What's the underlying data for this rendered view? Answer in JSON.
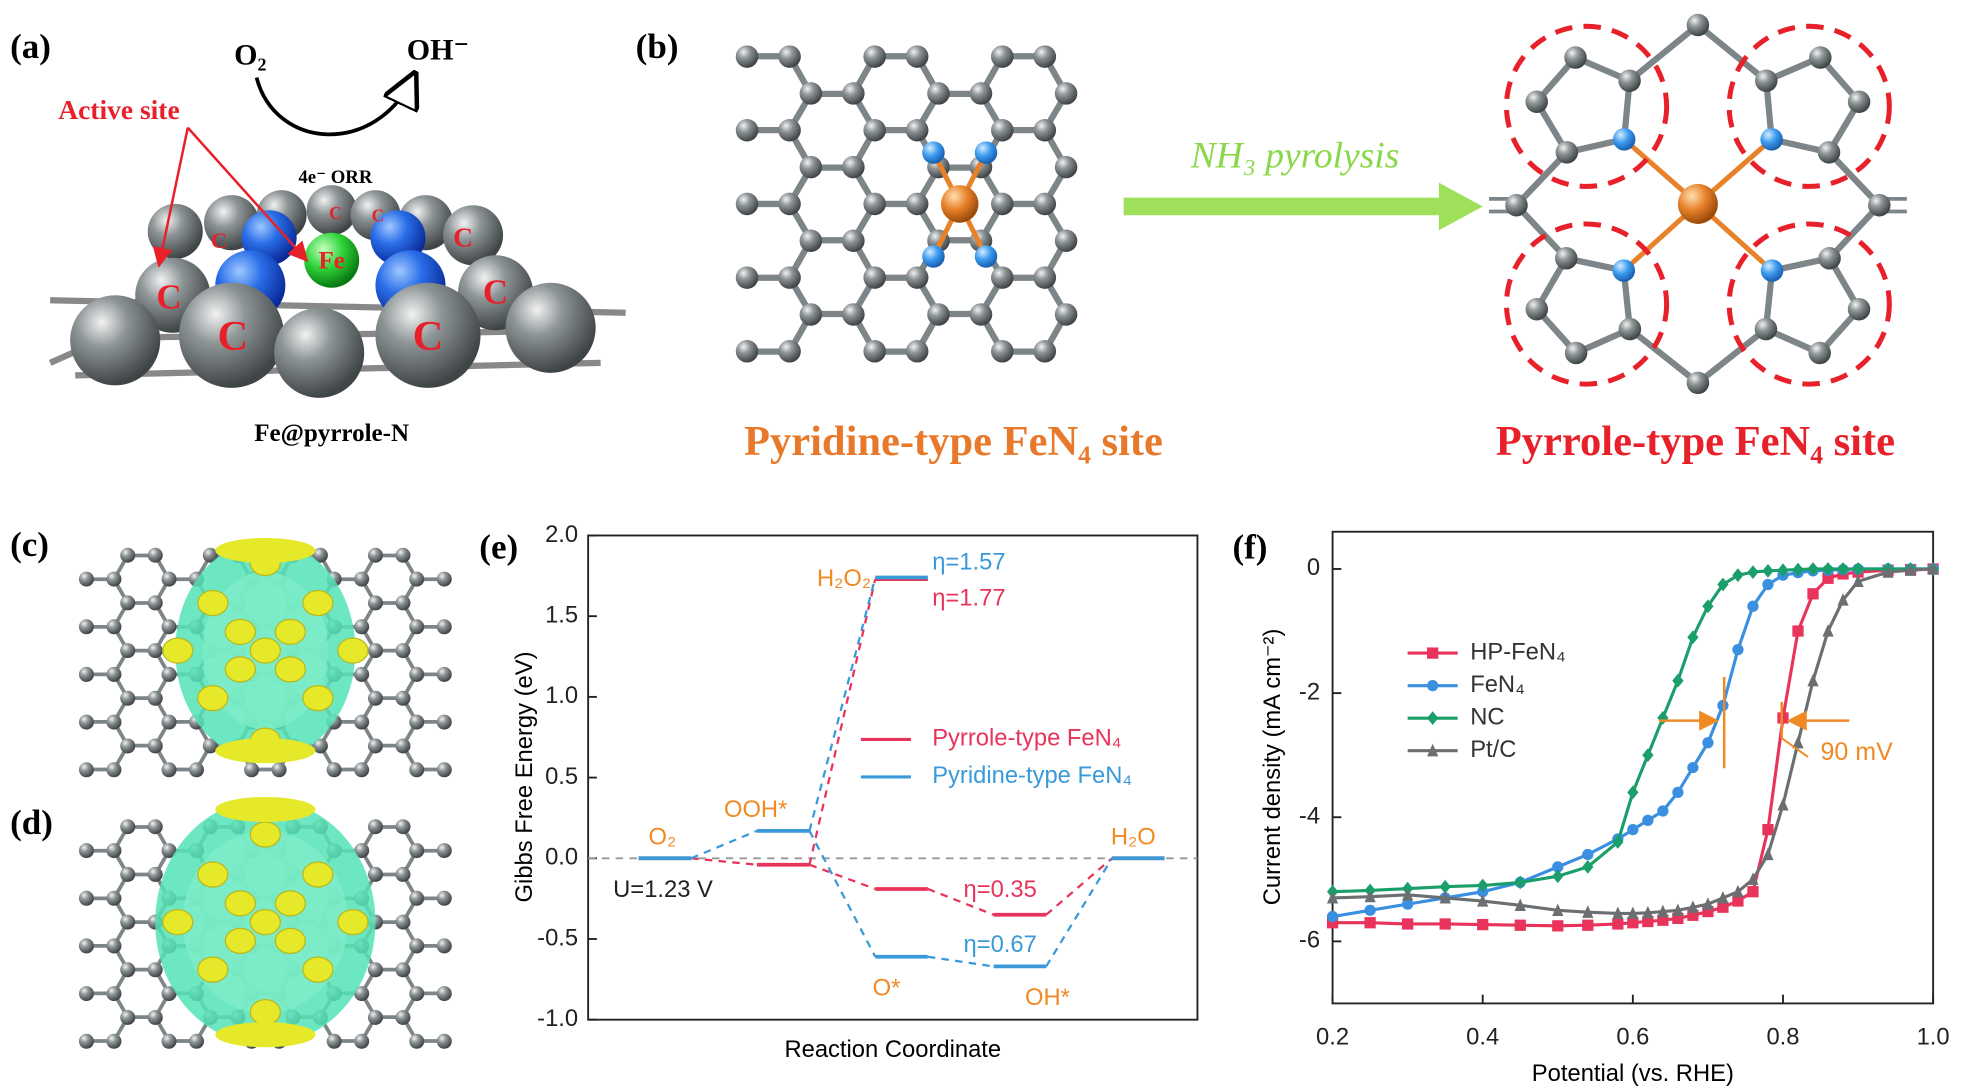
{
  "panel_labels": [
    "(a)",
    "(b)",
    "(c)",
    "(d)",
    "(e)",
    "(f)"
  ],
  "panel_a": {
    "reactant": "O₂",
    "product": "OH⁻",
    "process": "4e⁻ ORR",
    "annotation": "Active site",
    "caption": "Fe@pyrrole-N",
    "atom_labels": [
      "C",
      "C",
      "C",
      "C",
      "C",
      "C",
      "C",
      "C",
      "Fe"
    ]
  },
  "panel_b": {
    "process": "NH₃ pyrolysis",
    "left_caption": "Pyridine-type FeN₄ site",
    "right_caption": "Pyrrole-type FeN₄ site"
  },
  "chart_data": [
    {
      "type": "step",
      "ylabel": "Gibbs Free Energy (eV)",
      "xlabel": "Reaction Coordinate",
      "categories": [
        "O₂",
        "OOH*",
        "O*",
        "OH*",
        "H₂O"
      ],
      "intermediate": {
        "label": "H₂O₂",
        "values": [
          1.73,
          1.74
        ]
      },
      "label_color": "#f08a24",
      "series": [
        {
          "name": "Pyrrole-type FeN₄",
          "color": "#e8335a",
          "values": [
            0,
            -0.04,
            -0.19,
            -0.35,
            0
          ]
        },
        {
          "name": "Pyridine-type FeN₄",
          "color": "#3a9ad9",
          "values": [
            0,
            0.17,
            -0.61,
            -0.67,
            0
          ]
        }
      ],
      "annotations": [
        "U=1.23 V",
        "η=1.57",
        "η=1.77",
        "η=0.35",
        "η=0.67"
      ],
      "ylim": [
        -1,
        2
      ],
      "yticks": [
        {
          "value": -1,
          "label": "-1.0"
        },
        -0.5,
        {
          "value": 0,
          "label": "0.0"
        },
        0.5,
        {
          "value": 1,
          "label": "1.0"
        },
        1.5,
        {
          "value": 2,
          "label": "2.0"
        }
      ]
    },
    {
      "type": "line",
      "ylabel": "Current density (mA cm⁻²)",
      "xlabel": "Potential (vs. RHE)",
      "x": [
        0.2,
        0.25,
        0.3,
        0.35,
        0.4,
        0.45,
        0.5,
        0.54,
        0.58,
        0.6,
        0.62,
        0.64,
        0.66,
        0.68,
        0.7,
        0.72,
        0.74,
        0.76,
        0.78,
        0.8,
        0.82,
        0.84,
        0.86,
        0.88,
        0.9,
        0.94,
        0.97,
        1.0
      ],
      "series": [
        {
          "name": "HP-FeN₄",
          "color": "#e8335a",
          "marker": "square",
          "values": [
            -5.7,
            -5.7,
            -5.72,
            -5.72,
            -5.73,
            -5.74,
            -5.75,
            -5.74,
            -5.72,
            -5.7,
            -5.68,
            -5.66,
            -5.63,
            -5.58,
            -5.52,
            -5.45,
            -5.35,
            -5.2,
            -4.2,
            -2.4,
            -1.0,
            -0.4,
            -0.15,
            -0.08,
            -0.05,
            -0.02,
            -0.01,
            0
          ]
        },
        {
          "name": "FeN₄",
          "color": "#3a8fe0",
          "marker": "circle",
          "values": [
            -5.6,
            -5.5,
            -5.4,
            -5.3,
            -5.2,
            -5.05,
            -4.8,
            -4.6,
            -4.35,
            -4.2,
            -4.05,
            -3.9,
            -3.6,
            -3.2,
            -2.8,
            -2.2,
            -1.3,
            -0.6,
            -0.25,
            -0.1,
            -0.06,
            -0.03,
            -0.02,
            -0.01,
            0,
            0,
            0,
            0
          ]
        },
        {
          "name": "NC",
          "color": "#1a9e6a",
          "marker": "diamond",
          "values": [
            -5.2,
            -5.18,
            -5.15,
            -5.12,
            -5.1,
            -5.05,
            -4.95,
            -4.8,
            -4.4,
            -3.6,
            -3.0,
            -2.4,
            -1.8,
            -1.1,
            -0.6,
            -0.25,
            -0.1,
            -0.05,
            -0.03,
            -0.02,
            -0.01,
            0,
            0,
            0,
            0,
            0,
            0,
            0
          ]
        },
        {
          "name": "Pt/C",
          "color": "#6b6f72",
          "marker": "triangle",
          "values": [
            -5.3,
            -5.28,
            -5.25,
            -5.3,
            -5.35,
            -5.42,
            -5.5,
            -5.53,
            -5.55,
            -5.55,
            -5.54,
            -5.52,
            -5.5,
            -5.45,
            -5.4,
            -5.3,
            -5.2,
            -5.0,
            -4.6,
            -3.8,
            -2.8,
            -1.8,
            -1.0,
            -0.5,
            -0.2,
            -0.05,
            -0.02,
            0
          ]
        }
      ],
      "annotations": [
        "90 mV"
      ],
      "annotation_color": "#f08a24",
      "xlim": [
        0.2,
        1.0
      ],
      "xticks": [
        0.2,
        0.4,
        0.6,
        0.8,
        {
          "value": 1,
          "label": "1.0"
        }
      ],
      "ylim": [
        -7,
        0.6
      ],
      "yticks": [
        0,
        -2,
        -4,
        -6
      ]
    }
  ]
}
